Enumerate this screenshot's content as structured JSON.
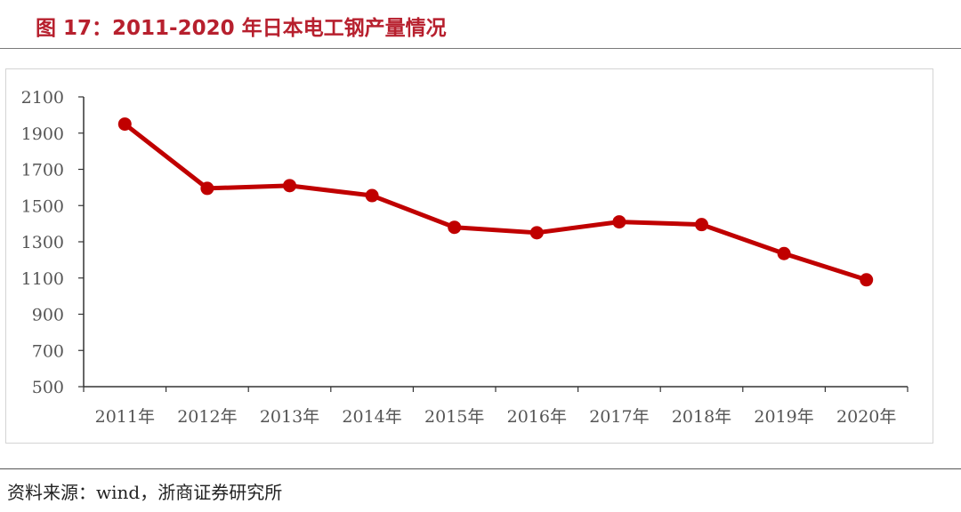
{
  "figure": {
    "title": "图 17：2011-2020 年日本电工钢产量情况",
    "source": "资料来源：wind，浙商证券研究所"
  },
  "colors": {
    "title": "#b7202e",
    "series": "#c00000",
    "axis": "#333333",
    "tick_text": "#555555"
  },
  "chart_data": {
    "type": "line",
    "title": "",
    "xlabel": "",
    "ylabel": "",
    "categories": [
      "2011年",
      "2012年",
      "2013年",
      "2014年",
      "2015年",
      "2016年",
      "2017年",
      "2018年",
      "2019年",
      "2020年"
    ],
    "series": [
      {
        "values": [
          1950,
          1595,
          1610,
          1555,
          1380,
          1350,
          1410,
          1395,
          1235,
          1090
        ]
      }
    ],
    "ylim": [
      500,
      2100
    ],
    "yticks": [
      500,
      700,
      900,
      1100,
      1300,
      1500,
      1700,
      1900,
      2100
    ],
    "grid": false,
    "legend": "none"
  }
}
